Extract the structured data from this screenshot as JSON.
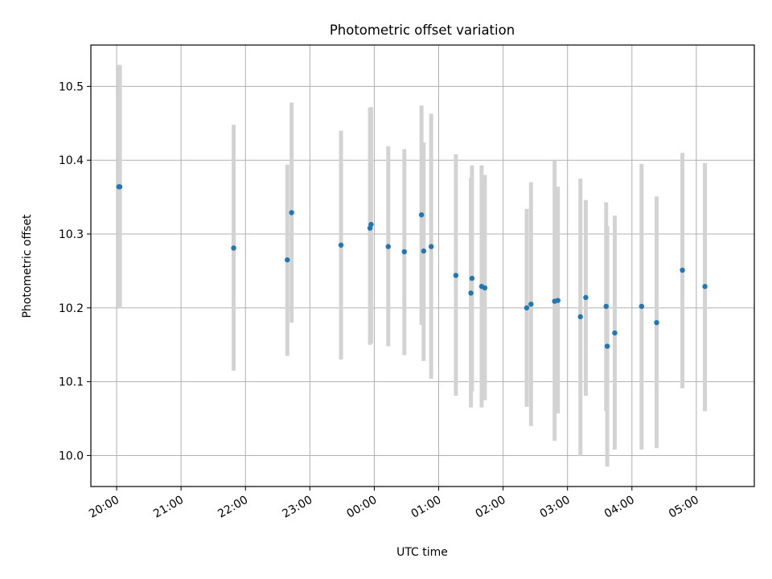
{
  "chart_data": {
    "type": "scatter",
    "title": "Photometric offset variation",
    "xlabel": "UTC time",
    "ylabel": "Photometric offset",
    "x_is_time": true,
    "x_ticks": [
      "20:00",
      "21:00",
      "22:00",
      "23:00",
      "00:00",
      "01:00",
      "02:00",
      "03:00",
      "04:00",
      "05:00"
    ],
    "y_ticks": [
      10.0,
      10.1,
      10.2,
      10.3,
      10.4,
      10.5
    ],
    "xlim": [
      "19:36",
      "05:54"
    ],
    "ylim": [
      9.958,
      10.556
    ],
    "grid": true,
    "point_color": "#1f77b4",
    "errorbar_color": "#d3d3d3",
    "points": [
      {
        "x": "20:02",
        "y": 10.364,
        "low": 10.2,
        "high": 10.529
      },
      {
        "x": "20:03",
        "y": 10.364,
        "low": 10.2,
        "high": 10.529
      },
      {
        "x": "21:49",
        "y": 10.281,
        "low": 10.115,
        "high": 10.448
      },
      {
        "x": "22:39",
        "y": 10.265,
        "low": 10.135,
        "high": 10.394
      },
      {
        "x": "22:43",
        "y": 10.329,
        "low": 10.18,
        "high": 10.478
      },
      {
        "x": "23:29",
        "y": 10.285,
        "low": 10.13,
        "high": 10.44
      },
      {
        "x": "23:56",
        "y": 10.308,
        "low": 10.15,
        "high": 10.471
      },
      {
        "x": "23:57",
        "y": 10.313,
        "low": 10.152,
        "high": 10.472
      },
      {
        "x": "00:13",
        "y": 10.283,
        "low": 10.148,
        "high": 10.419
      },
      {
        "x": "00:28",
        "y": 10.276,
        "low": 10.136,
        "high": 10.415
      },
      {
        "x": "00:44",
        "y": 10.326,
        "low": 10.177,
        "high": 10.474
      },
      {
        "x": "00:46",
        "y": 10.277,
        "low": 10.128,
        "high": 10.424
      },
      {
        "x": "00:53",
        "y": 10.283,
        "low": 10.104,
        "high": 10.463
      },
      {
        "x": "01:16",
        "y": 10.244,
        "low": 10.081,
        "high": 10.408
      },
      {
        "x": "01:30",
        "y": 10.22,
        "low": 10.065,
        "high": 10.376
      },
      {
        "x": "01:31",
        "y": 10.24,
        "low": 10.087,
        "high": 10.393
      },
      {
        "x": "01:40",
        "y": 10.229,
        "low": 10.065,
        "high": 10.393
      },
      {
        "x": "01:43",
        "y": 10.227,
        "low": 10.075,
        "high": 10.38
      },
      {
        "x": "02:22",
        "y": 10.2,
        "low": 10.066,
        "high": 10.334
      },
      {
        "x": "02:26",
        "y": 10.205,
        "low": 10.04,
        "high": 10.37
      },
      {
        "x": "02:48",
        "y": 10.209,
        "low": 10.02,
        "high": 10.4
      },
      {
        "x": "02:51",
        "y": 10.21,
        "low": 10.057,
        "high": 10.364
      },
      {
        "x": "03:12",
        "y": 10.188,
        "low": 10.0,
        "high": 10.375
      },
      {
        "x": "03:17",
        "y": 10.214,
        "low": 10.081,
        "high": 10.346
      },
      {
        "x": "03:36",
        "y": 10.202,
        "low": 10.06,
        "high": 10.343
      },
      {
        "x": "03:37",
        "y": 10.148,
        "low": 9.985,
        "high": 10.311
      },
      {
        "x": "03:44",
        "y": 10.166,
        "low": 10.008,
        "high": 10.325
      },
      {
        "x": "04:09",
        "y": 10.202,
        "low": 10.008,
        "high": 10.395
      },
      {
        "x": "04:23",
        "y": 10.18,
        "low": 10.01,
        "high": 10.351
      },
      {
        "x": "04:47",
        "y": 10.251,
        "low": 10.091,
        "high": 10.41
      },
      {
        "x": "05:08",
        "y": 10.229,
        "low": 10.06,
        "high": 10.396
      }
    ]
  }
}
